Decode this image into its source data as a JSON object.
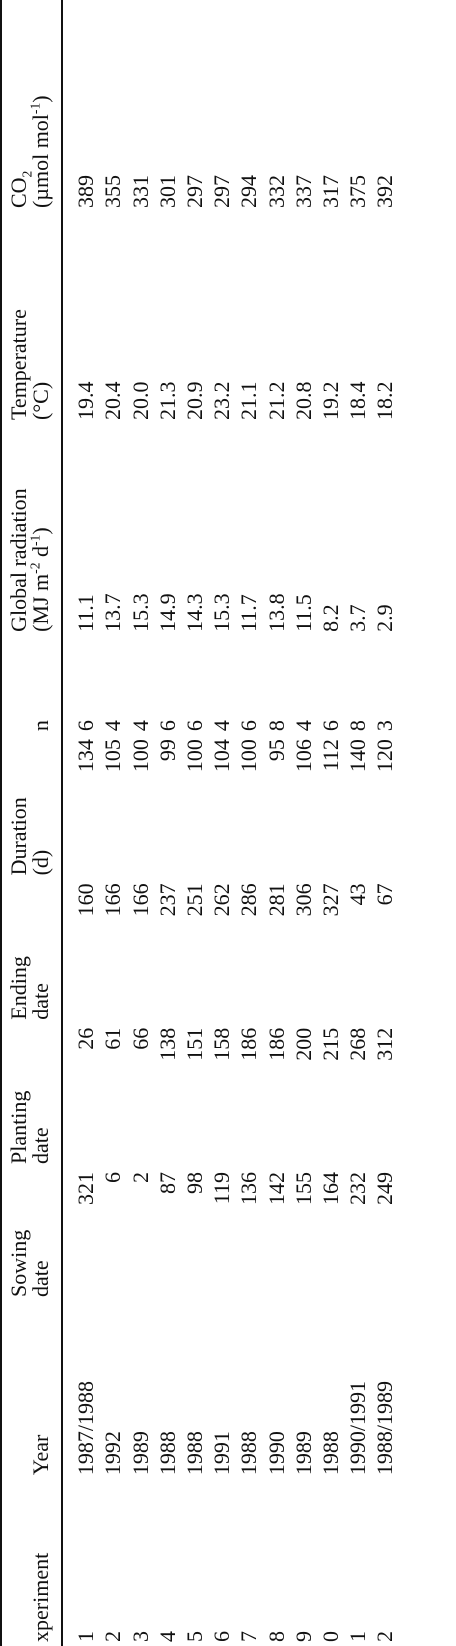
{
  "table": {
    "headers": {
      "experiment": "xperiment",
      "year": "Year",
      "sowing_date": [
        "Sowing",
        "date"
      ],
      "planting_date": [
        "Planting",
        "date"
      ],
      "ending_date": [
        "Ending",
        "date"
      ],
      "duration": [
        "Duration",
        "(d)"
      ],
      "n": "n",
      "global_radiation": [
        "Global radiation",
        "(MJ m",
        "-2",
        " d",
        "-1",
        ")"
      ],
      "temperature": [
        "Temperature",
        "(°C)"
      ],
      "co2": [
        "CO",
        "2",
        "(µmol  mol",
        "-1",
        ")"
      ]
    },
    "rows": [
      {
        "exp": "1",
        "year": "1987/1988",
        "sow": "321",
        "plant": "26",
        "end": "160",
        "dur": "134",
        "n": "6",
        "rad": "11.1",
        "temp": "19.4",
        "co2": "389"
      },
      {
        "exp": "2",
        "year": "1992",
        "sow": "6",
        "plant": "61",
        "end": "166",
        "dur": "105",
        "n": "4",
        "rad": "13.7",
        "temp": "20.4",
        "co2": "355"
      },
      {
        "exp": "3",
        "year": "1989",
        "sow": "2",
        "plant": "66",
        "end": "166",
        "dur": "100",
        "n": "4",
        "rad": "15.3",
        "temp": "20.0",
        "co2": "331"
      },
      {
        "exp": "4",
        "year": "1988",
        "sow": "87",
        "plant": "138",
        "end": "237",
        "dur": "99",
        "n": "6",
        "rad": "14.9",
        "temp": "21.3",
        "co2": "301"
      },
      {
        "exp": "5",
        "year": "1988",
        "sow": "98",
        "plant": "151",
        "end": "251",
        "dur": "100",
        "n": "6",
        "rad": "14.3",
        "temp": "20.9",
        "co2": "297"
      },
      {
        "exp": "6",
        "year": "1991",
        "sow": "119",
        "plant": "158",
        "end": "262",
        "dur": "104",
        "n": "4",
        "rad": "15.3",
        "temp": "23.2",
        "co2": "297"
      },
      {
        "exp": "7",
        "year": "1988",
        "sow": "136",
        "plant": "186",
        "end": "286",
        "dur": "100",
        "n": "6",
        "rad": "11.7",
        "temp": "21.1",
        "co2": "294"
      },
      {
        "exp": "8",
        "year": "1990",
        "sow": "142",
        "plant": "186",
        "end": "281",
        "dur": "95",
        "n": "8",
        "rad": "13.8",
        "temp": "21.2",
        "co2": "332"
      },
      {
        "exp": "9",
        "year": "1989",
        "sow": "155",
        "plant": "200",
        "end": "306",
        "dur": "106",
        "n": "4",
        "rad": "11.5",
        "temp": "20.8",
        "co2": "337"
      },
      {
        "exp": "0",
        "year": "1988",
        "sow": "164",
        "plant": "215",
        "end": "327",
        "dur": "112",
        "n": "6",
        "rad": "8.2",
        "temp": "19.2",
        "co2": "317"
      },
      {
        "exp": "1",
        "year": "1990/1991",
        "sow": "232",
        "plant": "268",
        "end": "43",
        "dur": "140",
        "n": "8",
        "rad": "3.7",
        "temp": "18.4",
        "co2": "375"
      },
      {
        "exp": "2",
        "year": "1988/1989",
        "sow": "249",
        "plant": "312",
        "end": "67",
        "dur": "120",
        "n": "3",
        "rad": "2.9",
        "temp": "18.2",
        "co2": "392"
      }
    ]
  }
}
